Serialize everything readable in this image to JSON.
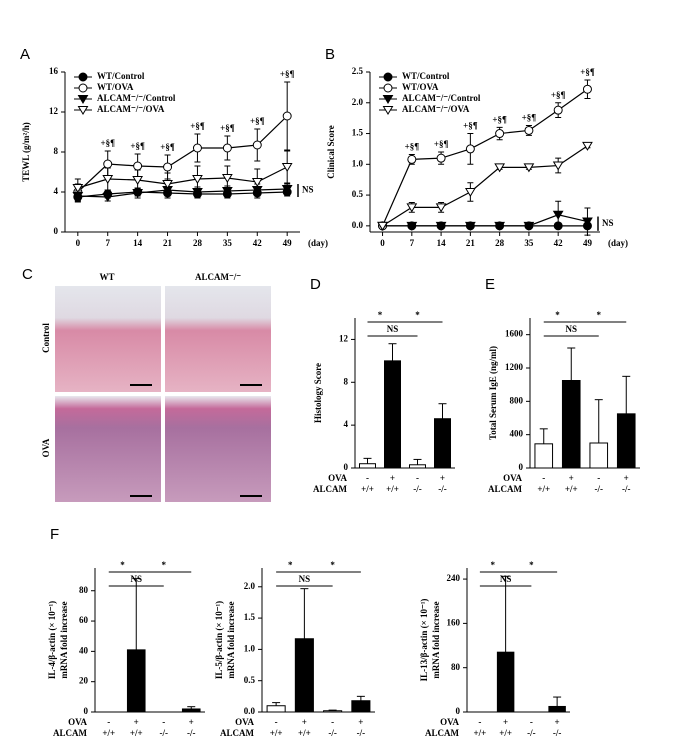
{
  "chart_data": [
    {
      "type": "line",
      "panel": "A",
      "ylabel": "TEWL (g/m²/h)",
      "xlabel": "(day)",
      "x": [
        0,
        7,
        14,
        21,
        28,
        35,
        42,
        49
      ],
      "xlim": [
        -3,
        52
      ],
      "xticks": [
        0,
        7,
        14,
        21,
        28,
        35,
        42,
        49
      ],
      "ylim": [
        0,
        16
      ],
      "yticks": [
        0,
        4,
        8,
        12,
        16
      ],
      "legend": "top-left",
      "annotation": "NS",
      "series": [
        {
          "name": "WT/Control",
          "color": "#000000",
          "marker": "filled-circle",
          "values": [
            3.5,
            3.8,
            4.0,
            3.9,
            3.8,
            3.8,
            3.9,
            4.0
          ],
          "errors": [
            0.5,
            0.4,
            0.4,
            0.5,
            0.4,
            0.4,
            0.5,
            0.4
          ]
        },
        {
          "name": "WT/OVA",
          "color": "#000000",
          "marker": "open-circle",
          "values": [
            4.0,
            6.8,
            6.6,
            6.5,
            8.4,
            8.4,
            8.7,
            11.6
          ],
          "errors": [
            0.8,
            1.3,
            1.2,
            1.2,
            1.4,
            1.2,
            1.6,
            3.4
          ],
          "marker_labels": [
            null,
            "+§¶",
            "+§¶",
            "+§¶",
            "+§¶",
            "+§¶",
            "+§¶",
            "+§¶"
          ]
        },
        {
          "name": "ALCAM⁻/⁻/Control",
          "color": "#000000",
          "marker": "filled-triangle",
          "values": [
            3.6,
            3.5,
            3.9,
            4.2,
            4.0,
            4.1,
            4.2,
            4.3
          ],
          "errors": [
            0.5,
            0.4,
            0.5,
            0.6,
            0.5,
            0.5,
            0.6,
            0.5
          ]
        },
        {
          "name": "ALCAM⁻/⁻/OVA",
          "color": "#000000",
          "marker": "open-triangle",
          "values": [
            4.4,
            5.3,
            5.2,
            4.8,
            5.3,
            5.4,
            5.0,
            6.5
          ],
          "errors": [
            0.9,
            1.1,
            1.0,
            1.1,
            1.3,
            1.2,
            1.3,
            1.6
          ]
        }
      ]
    },
    {
      "type": "line",
      "panel": "B",
      "ylabel": "Clinical Score",
      "xlabel": "(day)",
      "x": [
        0,
        7,
        14,
        21,
        28,
        35,
        42,
        49
      ],
      "xlim": [
        -3,
        52
      ],
      "xticks": [
        0,
        7,
        14,
        21,
        28,
        35,
        42,
        49
      ],
      "ylim": [
        -0.1,
        2.5
      ],
      "yticks": [
        {
          "value": 0,
          "label": "0.0"
        },
        0.5,
        {
          "value": 1,
          "label": "1.0"
        },
        1.5,
        {
          "value": 2,
          "label": "2.0"
        },
        2.5
      ],
      "legend": "top-left",
      "annotation": "NS",
      "series": [
        {
          "name": "WT/Control",
          "color": "#000000",
          "marker": "filled-circle",
          "values": [
            0,
            0,
            0,
            0,
            0,
            0,
            0,
            0
          ],
          "errors": [
            0,
            0,
            0,
            0,
            0,
            0,
            0,
            0
          ]
        },
        {
          "name": "WT/OVA",
          "color": "#000000",
          "marker": "open-circle",
          "values": [
            0,
            1.08,
            1.1,
            1.25,
            1.5,
            1.55,
            1.88,
            2.22
          ],
          "errors": [
            0,
            0.08,
            0.1,
            0.25,
            0.1,
            0.08,
            0.12,
            0.15
          ],
          "marker_labels": [
            null,
            "+§¶",
            "+§¶",
            "+§¶",
            "+§¶",
            "+§¶",
            "+§¶",
            "+§¶"
          ]
        },
        {
          "name": "ALCAM⁻/⁻/Control",
          "color": "#000000",
          "marker": "filled-triangle",
          "values": [
            0,
            0,
            0,
            0,
            0,
            0,
            0.18,
            0.07
          ],
          "errors": [
            0,
            0,
            0,
            0,
            0,
            0,
            0.22,
            0.22
          ]
        },
        {
          "name": "ALCAM⁻/⁻/OVA",
          "color": "#000000",
          "marker": "open-triangle",
          "values": [
            0,
            0.3,
            0.3,
            0.55,
            0.95,
            0.95,
            0.98,
            1.3
          ],
          "errors": [
            0,
            0.08,
            0.08,
            0.15,
            0.03,
            0.03,
            0.12,
            0.03
          ]
        }
      ]
    },
    {
      "type": "bar",
      "panel": "D",
      "ylabel": [
        "Histology Score"
      ],
      "ylim": [
        0,
        14
      ],
      "yticks": [
        0,
        4,
        8,
        12
      ],
      "rows": [
        {
          "name": "OVA",
          "labels": [
            "-",
            "+",
            "-",
            "+"
          ]
        },
        {
          "name": "ALCAM",
          "labels": [
            "+/+",
            "+/+",
            "-/-",
            "-/-"
          ]
        }
      ],
      "colors": [
        "#ffffff",
        "#000000",
        "#ffffff",
        "#000000"
      ],
      "values": [
        0.4,
        10,
        0.3,
        4.6
      ],
      "errors": [
        0.5,
        1.6,
        0.5,
        1.4
      ],
      "comparisons": [
        {
          "bars": [
            0,
            1
          ],
          "label": "*"
        },
        {
          "bars": [
            1,
            3
          ],
          "label": "*"
        },
        {
          "bars": [
            0,
            2
          ],
          "label": "NS"
        }
      ]
    },
    {
      "type": "bar",
      "panel": "E",
      "ylabel": [
        "Total Serum IgE (ng/ml)"
      ],
      "ylim": [
        0,
        1800
      ],
      "yticks": [
        0,
        400,
        800,
        1200,
        1600
      ],
      "rows": [
        {
          "name": "OVA",
          "labels": [
            "-",
            "+",
            "-",
            "+"
          ]
        },
        {
          "name": "ALCAM",
          "labels": [
            "+/+",
            "+/+",
            "-/-",
            "-/-"
          ]
        }
      ],
      "colors": [
        "#ffffff",
        "#000000",
        "#ffffff",
        "#000000"
      ],
      "values": [
        290,
        1050,
        300,
        650
      ],
      "errors": [
        180,
        390,
        520,
        450
      ],
      "comparisons": [
        {
          "bars": [
            0,
            1
          ],
          "label": "*"
        },
        {
          "bars": [
            1,
            3
          ],
          "label": "*"
        },
        {
          "bars": [
            0,
            2
          ],
          "label": "NS"
        }
      ]
    },
    {
      "type": "bar",
      "panel": "F",
      "ylabel": [
        "IL-4/β-actin (× 10⁻¹)",
        "mRNA fold increase"
      ],
      "ylim": [
        0,
        95
      ],
      "yticks": [
        0,
        20,
        40,
        60,
        80
      ],
      "rows": [
        {
          "name": "OVA",
          "labels": [
            "-",
            "+",
            "-",
            "+"
          ]
        },
        {
          "name": "ALCAM",
          "labels": [
            "+/+",
            "+/+",
            "-/-",
            "-/-"
          ]
        }
      ],
      "colors": [
        "#ffffff",
        "#000000",
        "#ffffff",
        "#000000"
      ],
      "values": [
        0,
        41,
        0,
        2
      ],
      "errors": [
        0,
        47,
        0,
        1.5
      ],
      "comparisons": [
        {
          "bars": [
            0,
            1
          ],
          "label": "*"
        },
        {
          "bars": [
            1,
            3
          ],
          "label": "*"
        },
        {
          "bars": [
            0,
            2
          ],
          "label": "NS"
        }
      ]
    },
    {
      "type": "bar",
      "ylabel": [
        "IL-5/β-actin (× 10⁻¹)",
        "mRNA fold increase"
      ],
      "ylim": [
        0,
        2.3
      ],
      "yticks": [
        {
          "value": 0,
          "label": "0.0"
        },
        0.5,
        {
          "value": 1,
          "label": "1.0"
        },
        1.5,
        {
          "value": 2,
          "label": "2.0"
        }
      ],
      "rows": [
        {
          "name": "OVA",
          "labels": [
            "-",
            "+",
            "-",
            "+"
          ]
        },
        {
          "name": "ALCAM",
          "labels": [
            "+/+",
            "+/+",
            "-/-",
            "-/-"
          ]
        }
      ],
      "colors": [
        "#ffffff",
        "#000000",
        "#ffffff",
        "#000000"
      ],
      "values": [
        0.1,
        1.17,
        0.02,
        0.18
      ],
      "errors": [
        0.05,
        0.8,
        0.01,
        0.07
      ],
      "comparisons": [
        {
          "bars": [
            0,
            1
          ],
          "label": "*"
        },
        {
          "bars": [
            1,
            3
          ],
          "label": "*"
        },
        {
          "bars": [
            0,
            2
          ],
          "label": "NS"
        }
      ]
    },
    {
      "type": "bar",
      "ylabel": [
        "IL-13/β-actin (× 10⁻¹)",
        "mRNA fold increase"
      ],
      "ylim": [
        0,
        260
      ],
      "yticks": [
        0,
        80,
        160,
        240
      ],
      "rows": [
        {
          "name": "OVA",
          "labels": [
            "-",
            "+",
            "-",
            "+"
          ]
        },
        {
          "name": "ALCAM",
          "labels": [
            "+/+",
            "+/+",
            "-/-",
            "-/-"
          ]
        }
      ],
      "colors": [
        "#ffffff",
        "#000000",
        "#ffffff",
        "#000000"
      ],
      "values": [
        0,
        108,
        0,
        10
      ],
      "errors": [
        0,
        137,
        0,
        17
      ],
      "comparisons": [
        {
          "bars": [
            0,
            1
          ],
          "label": "*"
        },
        {
          "bars": [
            1,
            3
          ],
          "label": "*"
        },
        {
          "bars": [
            0,
            2
          ],
          "label": "NS"
        }
      ]
    }
  ],
  "histology": {
    "panel": "C",
    "columns": [
      "WT",
      "ALCAM⁻/⁻"
    ],
    "rows": [
      "Control",
      "OVA"
    ]
  }
}
